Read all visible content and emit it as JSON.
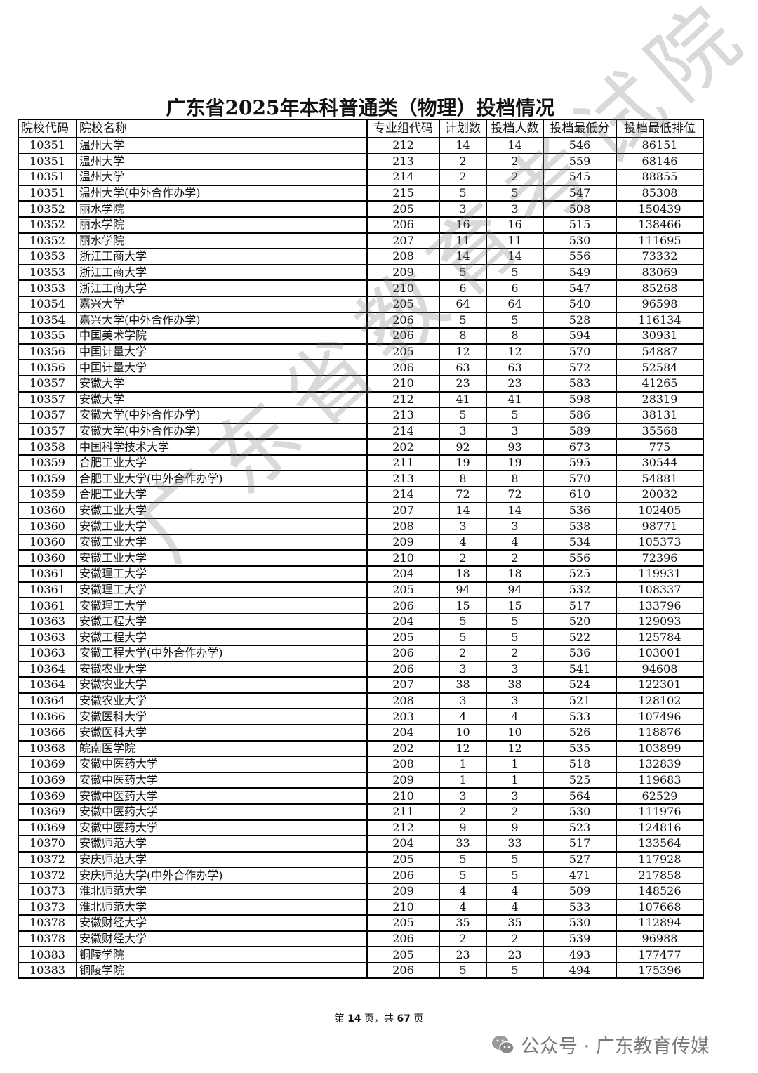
{
  "title": "广东省2025年本科普通类（物理）投档情况",
  "watermark": "广东省教育考试院",
  "columns": [
    "院校代码",
    "院校名称",
    "专业组代码",
    "计划数",
    "投档人数",
    "投档最低分",
    "投档最低排位"
  ],
  "rows": [
    [
      "10351",
      "温州大学",
      "212",
      "14",
      "14",
      "546",
      "86151"
    ],
    [
      "10351",
      "温州大学",
      "213",
      "2",
      "2",
      "559",
      "68146"
    ],
    [
      "10351",
      "温州大学",
      "214",
      "2",
      "2",
      "545",
      "88855"
    ],
    [
      "10351",
      "温州大学(中外合作办学)",
      "215",
      "5",
      "5",
      "547",
      "85308"
    ],
    [
      "10352",
      "丽水学院",
      "205",
      "3",
      "3",
      "508",
      "150439"
    ],
    [
      "10352",
      "丽水学院",
      "206",
      "16",
      "16",
      "515",
      "138466"
    ],
    [
      "10352",
      "丽水学院",
      "207",
      "11",
      "11",
      "530",
      "111695"
    ],
    [
      "10353",
      "浙江工商大学",
      "208",
      "14",
      "14",
      "556",
      "73332"
    ],
    [
      "10353",
      "浙江工商大学",
      "209",
      "5",
      "5",
      "549",
      "83069"
    ],
    [
      "10353",
      "浙江工商大学",
      "210",
      "6",
      "6",
      "547",
      "85268"
    ],
    [
      "10354",
      "嘉兴大学",
      "205",
      "64",
      "64",
      "540",
      "96598"
    ],
    [
      "10354",
      "嘉兴大学(中外合作办学)",
      "206",
      "5",
      "5",
      "528",
      "116134"
    ],
    [
      "10355",
      "中国美术学院",
      "206",
      "8",
      "8",
      "594",
      "30931"
    ],
    [
      "10356",
      "中国计量大学",
      "205",
      "12",
      "12",
      "570",
      "54887"
    ],
    [
      "10356",
      "中国计量大学",
      "206",
      "63",
      "63",
      "572",
      "52584"
    ],
    [
      "10357",
      "安徽大学",
      "210",
      "23",
      "23",
      "583",
      "41265"
    ],
    [
      "10357",
      "安徽大学",
      "212",
      "41",
      "41",
      "598",
      "28319"
    ],
    [
      "10357",
      "安徽大学(中外合作办学)",
      "213",
      "5",
      "5",
      "586",
      "38131"
    ],
    [
      "10357",
      "安徽大学(中外合作办学)",
      "214",
      "3",
      "3",
      "589",
      "35568"
    ],
    [
      "10358",
      "中国科学技术大学",
      "202",
      "92",
      "93",
      "673",
      "775"
    ],
    [
      "10359",
      "合肥工业大学",
      "211",
      "19",
      "19",
      "595",
      "30544"
    ],
    [
      "10359",
      "合肥工业大学(中外合作办学)",
      "213",
      "8",
      "8",
      "570",
      "54881"
    ],
    [
      "10359",
      "合肥工业大学",
      "214",
      "72",
      "72",
      "610",
      "20032"
    ],
    [
      "10360",
      "安徽工业大学",
      "207",
      "14",
      "14",
      "536",
      "102405"
    ],
    [
      "10360",
      "安徽工业大学",
      "208",
      "3",
      "3",
      "538",
      "98771"
    ],
    [
      "10360",
      "安徽工业大学",
      "209",
      "4",
      "4",
      "534",
      "105373"
    ],
    [
      "10360",
      "安徽工业大学",
      "210",
      "2",
      "2",
      "556",
      "72396"
    ],
    [
      "10361",
      "安徽理工大学",
      "204",
      "18",
      "18",
      "525",
      "119931"
    ],
    [
      "10361",
      "安徽理工大学",
      "205",
      "94",
      "94",
      "532",
      "108337"
    ],
    [
      "10361",
      "安徽理工大学",
      "206",
      "15",
      "15",
      "517",
      "133796"
    ],
    [
      "10363",
      "安徽工程大学",
      "204",
      "5",
      "5",
      "520",
      "129093"
    ],
    [
      "10363",
      "安徽工程大学",
      "205",
      "5",
      "5",
      "522",
      "125784"
    ],
    [
      "10363",
      "安徽工程大学(中外合作办学)",
      "206",
      "2",
      "2",
      "536",
      "103001"
    ],
    [
      "10364",
      "安徽农业大学",
      "206",
      "3",
      "3",
      "541",
      "94608"
    ],
    [
      "10364",
      "安徽农业大学",
      "207",
      "38",
      "38",
      "524",
      "122301"
    ],
    [
      "10364",
      "安徽农业大学",
      "208",
      "3",
      "3",
      "521",
      "128102"
    ],
    [
      "10366",
      "安徽医科大学",
      "203",
      "4",
      "4",
      "533",
      "107496"
    ],
    [
      "10366",
      "安徽医科大学",
      "204",
      "10",
      "10",
      "526",
      "118876"
    ],
    [
      "10368",
      "皖南医学院",
      "202",
      "12",
      "12",
      "535",
      "103899"
    ],
    [
      "10369",
      "安徽中医药大学",
      "208",
      "1",
      "1",
      "518",
      "132839"
    ],
    [
      "10369",
      "安徽中医药大学",
      "209",
      "1",
      "1",
      "525",
      "119683"
    ],
    [
      "10369",
      "安徽中医药大学",
      "210",
      "3",
      "3",
      "564",
      "62529"
    ],
    [
      "10369",
      "安徽中医药大学",
      "211",
      "2",
      "2",
      "530",
      "111976"
    ],
    [
      "10369",
      "安徽中医药大学",
      "212",
      "9",
      "9",
      "523",
      "124816"
    ],
    [
      "10370",
      "安徽师范大学",
      "204",
      "33",
      "33",
      "517",
      "133564"
    ],
    [
      "10372",
      "安庆师范大学",
      "205",
      "5",
      "5",
      "527",
      "117928"
    ],
    [
      "10372",
      "安庆师范大学(中外合作办学)",
      "206",
      "5",
      "5",
      "471",
      "217858"
    ],
    [
      "10373",
      "淮北师范大学",
      "209",
      "4",
      "4",
      "509",
      "148526"
    ],
    [
      "10373",
      "淮北师范大学",
      "210",
      "4",
      "4",
      "533",
      "107668"
    ],
    [
      "10378",
      "安徽财经大学",
      "205",
      "35",
      "35",
      "530",
      "112894"
    ],
    [
      "10378",
      "安徽财经大学",
      "206",
      "2",
      "2",
      "539",
      "96988"
    ],
    [
      "10383",
      "铜陵学院",
      "205",
      "23",
      "23",
      "493",
      "177477"
    ],
    [
      "10383",
      "铜陵学院",
      "206",
      "5",
      "5",
      "494",
      "175396"
    ]
  ],
  "footer": {
    "prefix": "第",
    "page": "14",
    "middle": "页，共",
    "total": "67",
    "suffix": "页"
  },
  "wechat": {
    "icon": "wechat-icon",
    "label": "公众号 · 广东教育传媒"
  }
}
